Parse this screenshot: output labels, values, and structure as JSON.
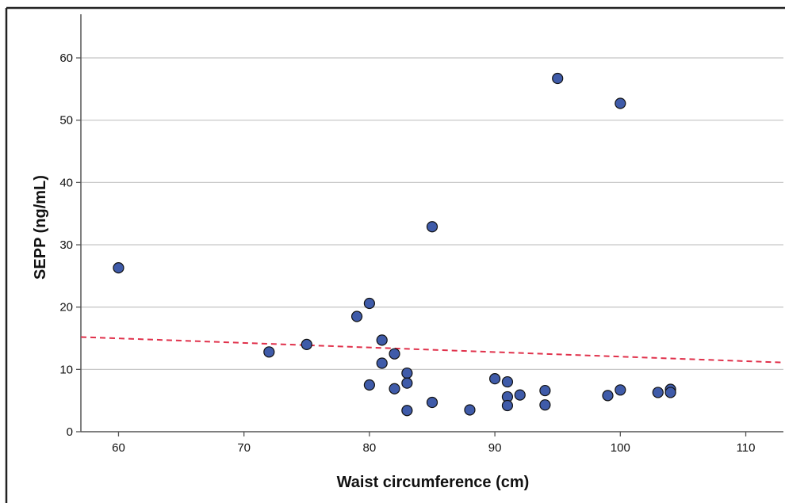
{
  "chart_data": {
    "type": "scatter",
    "title": "",
    "xlabel": "Waist circumference (cm)",
    "ylabel": "SEPP (ng/mL)",
    "xlim": [
      57,
      113
    ],
    "ylim": [
      0,
      67
    ],
    "xticks": [
      60,
      70,
      80,
      90,
      100,
      110
    ],
    "yticks": [
      0,
      10,
      20,
      30,
      40,
      50,
      60
    ],
    "grid": "horizontal",
    "legend": "none",
    "series": [
      {
        "points": [
          [
            60,
            26.3
          ],
          [
            72,
            12.8
          ],
          [
            75,
            14.0
          ],
          [
            79,
            18.5
          ],
          [
            80,
            20.6
          ],
          [
            80,
            7.5
          ],
          [
            81,
            14.7
          ],
          [
            81,
            11.0
          ],
          [
            82,
            12.5
          ],
          [
            82,
            6.9
          ],
          [
            83,
            9.4
          ],
          [
            83,
            7.8
          ],
          [
            83,
            3.4
          ],
          [
            85,
            32.9
          ],
          [
            85,
            4.7
          ],
          [
            88,
            3.5
          ],
          [
            90,
            8.5
          ],
          [
            91,
            8.0
          ],
          [
            91,
            5.6
          ],
          [
            91,
            4.2
          ],
          [
            92,
            5.9
          ],
          [
            94,
            6.6
          ],
          [
            94,
            4.3
          ],
          [
            95,
            56.7
          ],
          [
            99,
            5.8
          ],
          [
            100,
            6.7
          ],
          [
            100,
            52.7
          ],
          [
            103,
            6.3
          ],
          [
            104,
            6.8
          ],
          [
            104,
            6.3
          ]
        ]
      }
    ],
    "fit_line": {
      "x": [
        57,
        113
      ],
      "y": [
        15.2,
        11.1
      ],
      "style": "dashed"
    },
    "colors": {
      "marker_fill": "#3f5ba9",
      "marker_stroke": "#111111",
      "fit_line": "#e0314b",
      "grid": "#c8c8c8",
      "axis": "#555555"
    }
  }
}
